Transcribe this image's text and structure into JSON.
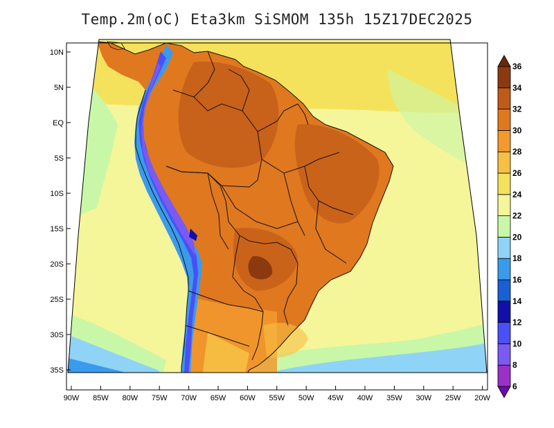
{
  "title": "Temp.2m(oC) Eta3km SiSMOM 135h 15Z17DEC2025",
  "lat_labels": [
    "10N",
    "5N",
    "EQ",
    "5S",
    "10S",
    "15S",
    "20S",
    "25S",
    "30S",
    "35S"
  ],
  "lon_labels": [
    "90W",
    "85W",
    "80W",
    "75W",
    "70W",
    "65W",
    "60W",
    "55W",
    "50W",
    "45W",
    "40W",
    "35W",
    "30W",
    "25W",
    "20W"
  ],
  "colorbar": {
    "levels": [
      "6",
      "8",
      "10",
      "12",
      "14",
      "16",
      "18",
      "20",
      "22",
      "24",
      "26",
      "28",
      "30",
      "32",
      "34",
      "36"
    ],
    "colors": [
      "#6a0dad",
      "#9b30c9",
      "#7a5af0",
      "#4a50f5",
      "#1010a8",
      "#1a5fd6",
      "#3a9bec",
      "#8fd3f7",
      "#c9f7a8",
      "#f5f59a",
      "#f5e25c",
      "#f6c044",
      "#f29a2e",
      "#e0781f",
      "#c05a18",
      "#8b3a10",
      "#6a2808"
    ]
  },
  "palette": {
    "ocean_south_cool": "#8fd3f7",
    "ocean_mid": "#c9f7a8",
    "ocean_warm": "#f5f59a",
    "land_hot": "#e0781f",
    "land_very_hot": "#c05a18",
    "andes_cold": "#4a50f5",
    "andes_very_cold": "#7a5af0",
    "border": "#111111"
  }
}
